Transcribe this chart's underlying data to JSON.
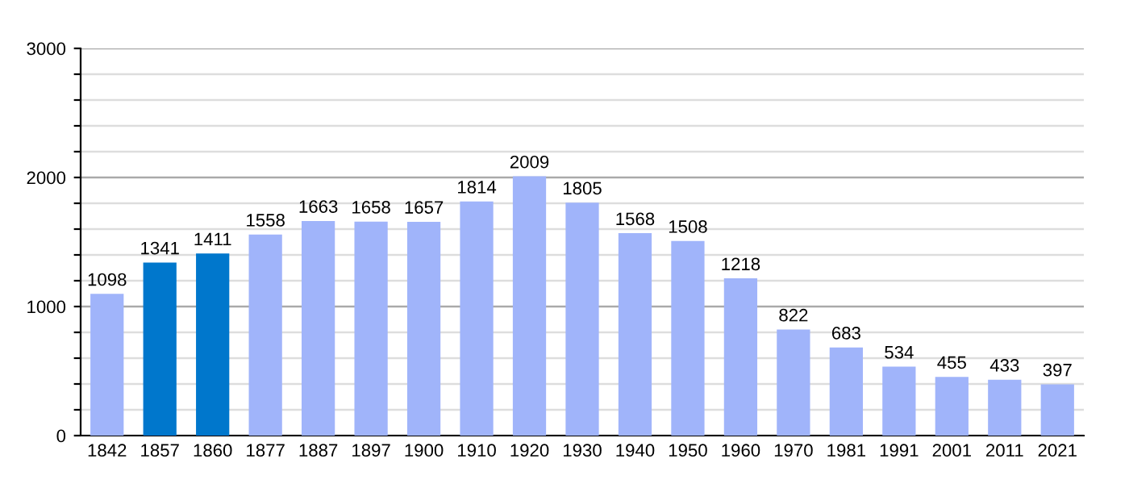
{
  "chart_data": {
    "type": "bar",
    "categories": [
      "1842",
      "1857",
      "1860",
      "1877",
      "1887",
      "1897",
      "1900",
      "1910",
      "1920",
      "1930",
      "1940",
      "1950",
      "1960",
      "1970",
      "1981",
      "1991",
      "2001",
      "2011",
      "2021"
    ],
    "values": [
      1098,
      1341,
      1411,
      1558,
      1663,
      1658,
      1657,
      1814,
      2009,
      1805,
      1568,
      1508,
      1218,
      822,
      683,
      534,
      455,
      433,
      397
    ],
    "colors": [
      "#a0b4fa",
      "#0077cc",
      "#0077cc",
      "#a0b4fa",
      "#a0b4fa",
      "#a0b4fa",
      "#a0b4fa",
      "#a0b4fa",
      "#a0b4fa",
      "#a0b4fa",
      "#a0b4fa",
      "#a0b4fa",
      "#a0b4fa",
      "#a0b4fa",
      "#a0b4fa",
      "#a0b4fa",
      "#a0b4fa",
      "#a0b4fa",
      "#a0b4fa"
    ],
    "ylim": [
      0,
      3000
    ],
    "yticks": [
      0,
      {
        "value": 200,
        "label": null
      },
      {
        "value": 400,
        "label": null
      },
      {
        "value": 600,
        "label": null
      },
      {
        "value": 800,
        "label": null
      },
      1000,
      {
        "value": 1200,
        "label": null
      },
      {
        "value": 1400,
        "label": null
      },
      {
        "value": 1600,
        "label": null
      },
      {
        "value": 1800,
        "label": null
      },
      2000,
      {
        "value": 2200,
        "label": null
      },
      {
        "value": 2400,
        "label": null
      },
      {
        "value": 2600,
        "label": null
      },
      {
        "value": 2800,
        "label": null
      },
      3000
    ],
    "grid": "y",
    "data_labels": true
  }
}
